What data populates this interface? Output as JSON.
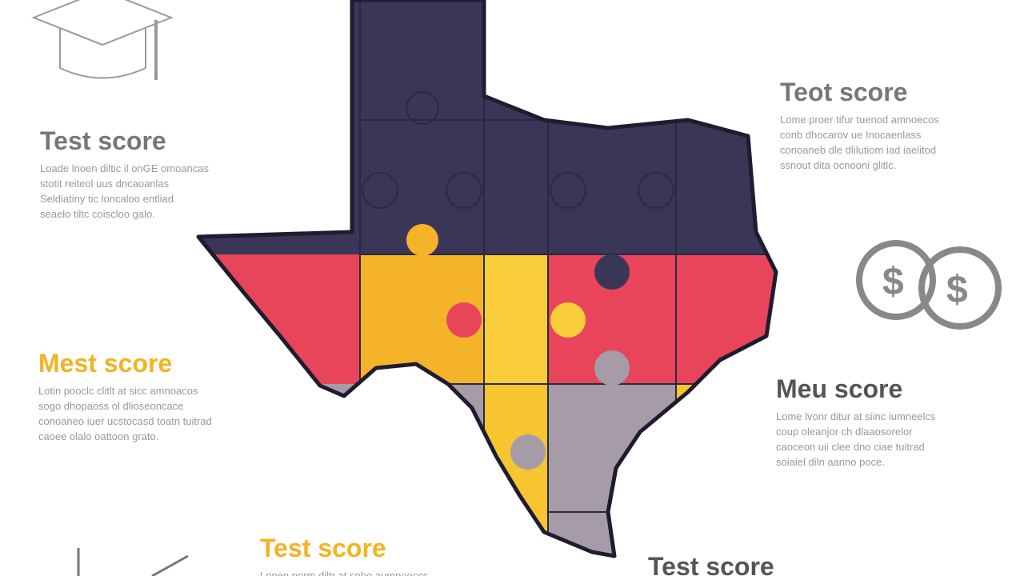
{
  "sections": [
    {
      "heading": "Test score",
      "lines": [
        "Loade lnoen diltic il onGE omoancas",
        "stotit reiteol uus dncaoanlas",
        "Seldiatiny tic loncaloo entliad",
        "seaelo tiltc coiscloo galo."
      ]
    },
    {
      "heading": "Teot score",
      "lines": [
        "Lome proer tifur tuenod amnoecos",
        "conb dhocarov ue Inocaenlass",
        "conoaneb dle dlilutiom iad iaelitod",
        "ssnout dita ocnooni glitlc."
      ]
    },
    {
      "heading": "Mest score",
      "lines": [
        "Lotin pooclc clitlt at sicc amnoacos",
        "sogo dhopaoss ol dlioseoncace",
        "conoaneo iuer ucstocasd toatn tuitrad",
        "caoee olalo oattoon grato."
      ]
    },
    {
      "heading": "Meu score",
      "lines": [
        "Lome lvonr ditur at siinc iumneelcs",
        "coup oleanjor ch dlaaosorelor",
        "caoceon uii clee dno ciae tuitrad",
        "soiaiel diln aanno poce."
      ]
    },
    {
      "heading": "Test score",
      "lines": [
        "Lonen porm diltr at snbo aumnooccs"
      ]
    },
    {
      "heading": "Test score",
      "lines": []
    }
  ]
}
